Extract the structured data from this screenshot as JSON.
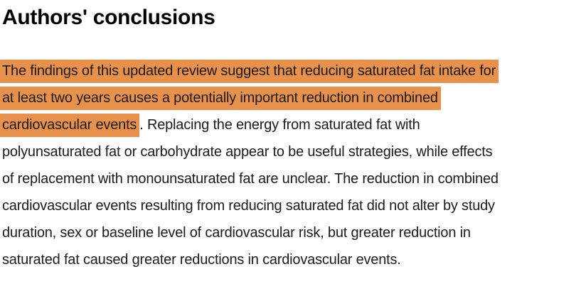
{
  "document": {
    "heading": "Authors' conclusions",
    "paragraph": {
      "lines": [
        {
          "h": "The findings of this updated review suggest that reducing saturated fat intake for"
        },
        {
          "h": "at least two years causes a potentially important reduction in combined"
        },
        {
          "h": "cardiovascular events",
          "t": ". Replacing the energy from saturated fat with"
        },
        {
          "t": "polyunsaturated fat or carbohydrate appear to be useful strategies, while effects"
        },
        {
          "t": "of replacement with monounsaturated fat are unclear. The reduction in combined"
        },
        {
          "t": "cardiovascular events resulting from reducing saturated fat did not alter by study"
        },
        {
          "t": "duration, sex or baseline level of cardiovascular risk, but greater reduction in"
        },
        {
          "t": "saturated fat caused greater reductions in cardiovascular events."
        }
      ]
    },
    "colors": {
      "highlight": "#E8914A",
      "text": "#1A1A1A",
      "heading": "#000000",
      "background": "#FFFFFF"
    }
  }
}
